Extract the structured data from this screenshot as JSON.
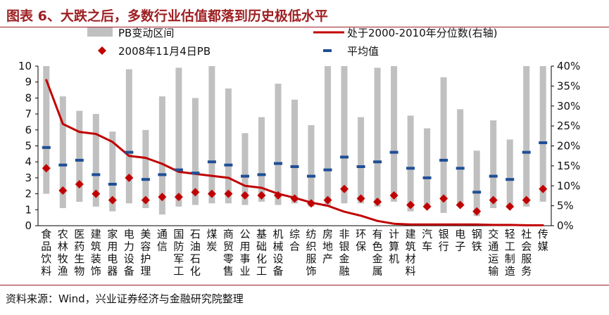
{
  "header": {
    "title": "图表 6、大跌之后，多数行业估值都落到历史极低水平"
  },
  "footer": {
    "source": "资料来源：Wind，兴业证券经济与金融研究院整理"
  },
  "colors": {
    "accent": "#9e1f22",
    "range_bar": "#c0c0c0",
    "line": "#c00000",
    "pb_marker": "#c00000",
    "avg_marker": "#1f4e96"
  },
  "chart_data": {
    "type": "bar",
    "title": "",
    "categories": [
      "食品饮料",
      "农林牧渔",
      "医药生物",
      "建筑装饰",
      "家用电器",
      "电力设备",
      "美容护理",
      "通信",
      "国防军工",
      "石油石化",
      "煤炭",
      "商贸零售",
      "公用事业",
      "基础化工",
      "机械设备",
      "综合",
      "纺织服饰",
      "房地产",
      "非银金融",
      "环保",
      "有色金属",
      "计算机",
      "建筑材料",
      "汽车",
      "银行",
      "电子",
      "钢铁",
      "交通运输",
      "轻工制造",
      "社会服务",
      "传媒"
    ],
    "series": [
      {
        "name": "PB变动区间",
        "kind": "range",
        "axis": "left",
        "min": [
          2.0,
          1.1,
          1.5,
          1.2,
          0.9,
          1.4,
          1.1,
          0.7,
          1.2,
          1.3,
          1.4,
          1.4,
          1.3,
          1.5,
          1.3,
          1.4,
          1.2,
          1.2,
          1.4,
          1.4,
          1.2,
          1.5,
          0.9,
          1.1,
          0.8,
          1.3,
          0.6,
          1.1,
          1.1,
          1.2,
          1.5
        ],
        "max": [
          10.0,
          8.1,
          7.2,
          7.0,
          5.9,
          9.8,
          6.0,
          8.1,
          9.9,
          8.0,
          10.0,
          8.6,
          5.8,
          6.8,
          8.9,
          7.9,
          6.3,
          10.0,
          10.0,
          6.8,
          9.9,
          10.0,
          6.9,
          6.1,
          9.3,
          7.3,
          4.7,
          6.6,
          5.4,
          10.0,
          10.0
        ]
      },
      {
        "name": "处于2000-2010年分位数(右轴)",
        "kind": "line",
        "axis": "right",
        "values": [
          36.5,
          25.5,
          23.5,
          23.0,
          21.0,
          17.5,
          17.0,
          15.5,
          13.5,
          13.0,
          12.5,
          12.0,
          10.0,
          9.5,
          8.0,
          7.0,
          5.8,
          5.0,
          3.5,
          2.5,
          1.2,
          0.5,
          0.3,
          0.3,
          0.3,
          0.3,
          0.3,
          0.2,
          0.2,
          0.1,
          0.1
        ]
      },
      {
        "name": "2008年11月4日PB",
        "kind": "marker",
        "axis": "left",
        "values": [
          3.6,
          2.2,
          2.6,
          2.0,
          1.6,
          3.0,
          1.6,
          1.8,
          1.8,
          2.1,
          2.0,
          2.0,
          1.9,
          1.9,
          1.9,
          1.7,
          1.4,
          1.6,
          2.3,
          1.7,
          1.5,
          1.9,
          1.3,
          1.2,
          1.7,
          1.3,
          0.9,
          1.6,
          1.2,
          1.6,
          2.3
        ]
      },
      {
        "name": "平均值",
        "kind": "marker",
        "axis": "left",
        "values": [
          4.9,
          3.8,
          4.1,
          3.2,
          2.6,
          4.6,
          2.9,
          3.2,
          3.5,
          3.3,
          4.0,
          3.8,
          3.1,
          3.2,
          3.9,
          3.7,
          3.1,
          3.5,
          4.3,
          3.7,
          4.0,
          4.6,
          3.6,
          3.0,
          4.1,
          3.6,
          2.1,
          3.1,
          2.9,
          4.6,
          5.2
        ]
      }
    ],
    "left_axis": {
      "ylim": [
        0,
        10
      ],
      "ticks": [
        "0",
        "1",
        "2",
        "3",
        "4",
        "5",
        "6",
        "7",
        "8",
        "9",
        "10"
      ]
    },
    "right_axis": {
      "ylim": [
        0,
        40
      ],
      "ticks": [
        "0%",
        "5%",
        "10%",
        "15%",
        "20%",
        "25%",
        "30%",
        "35%",
        "40%"
      ]
    },
    "legend": [
      {
        "label": "PB变动区间",
        "kind": "range"
      },
      {
        "label": "处于2000-2010年分位数(右轴)",
        "kind": "line"
      },
      {
        "label": "2008年11月4日PB",
        "kind": "diamond"
      },
      {
        "label": "平均值",
        "kind": "dash"
      }
    ]
  }
}
